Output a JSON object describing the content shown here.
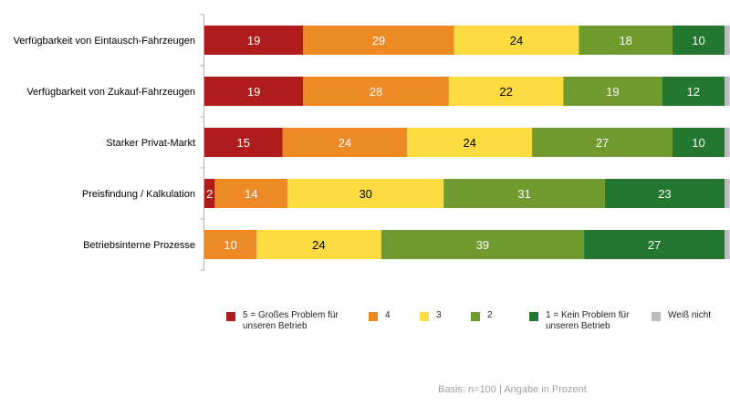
{
  "chart_data": {
    "type": "bar",
    "orientation": "horizontal",
    "stacked": true,
    "percent_scale": [
      0,
      100
    ],
    "categories": [
      "Verfügbarkeit von Eintausch-Fahrzeugen",
      "Verfügbarkeit von Zukauf-Fahrzeugen",
      "Starker Privat-Markt",
      "Preisfindung / Kalkulation",
      "Betriebsinterne Prozesse"
    ],
    "series": [
      {
        "name": "5 = Großes Problem für unseren Betrieb",
        "color": "#b01c1c",
        "label_color": "#ffffff",
        "values": [
          19,
          19,
          15,
          2,
          0
        ]
      },
      {
        "name": "4",
        "color": "#ee8a25",
        "label_color": "#ffffff",
        "values": [
          29,
          28,
          24,
          14,
          10
        ]
      },
      {
        "name": "3",
        "color": "#fcdc40",
        "label_color": "#000000",
        "values": [
          24,
          22,
          24,
          30,
          24
        ]
      },
      {
        "name": "2",
        "color": "#709a2e",
        "label_color": "#ffffff",
        "values": [
          18,
          19,
          27,
          31,
          39
        ]
      },
      {
        "name": "1 = Kein Problem für unseren Betrieb",
        "color": "#24772f",
        "label_color": "#ffffff",
        "values": [
          10,
          12,
          10,
          23,
          27
        ]
      },
      {
        "name": "Weiß nicht",
        "color": "#bdbdbd",
        "label_color": "#000000",
        "values": [
          1,
          1,
          1,
          1,
          1
        ]
      }
    ],
    "legend_position": "bottom",
    "grid": false
  },
  "legend": [
    {
      "label": "5 = Großes Problem für\nunseren Betrieb",
      "color": "#b01c1c"
    },
    {
      "label": "4",
      "color": "#ee8a25"
    },
    {
      "label": "3",
      "color": "#fcdc40"
    },
    {
      "label": "2",
      "color": "#709a2e"
    },
    {
      "label": "1 = Kein Problem für\nunseren Betrieb",
      "color": "#24772f"
    },
    {
      "label": "Weiß nicht",
      "color": "#bdbdbd"
    }
  ],
  "footnote": "Basis: n=100 | Angabe in Prozent"
}
